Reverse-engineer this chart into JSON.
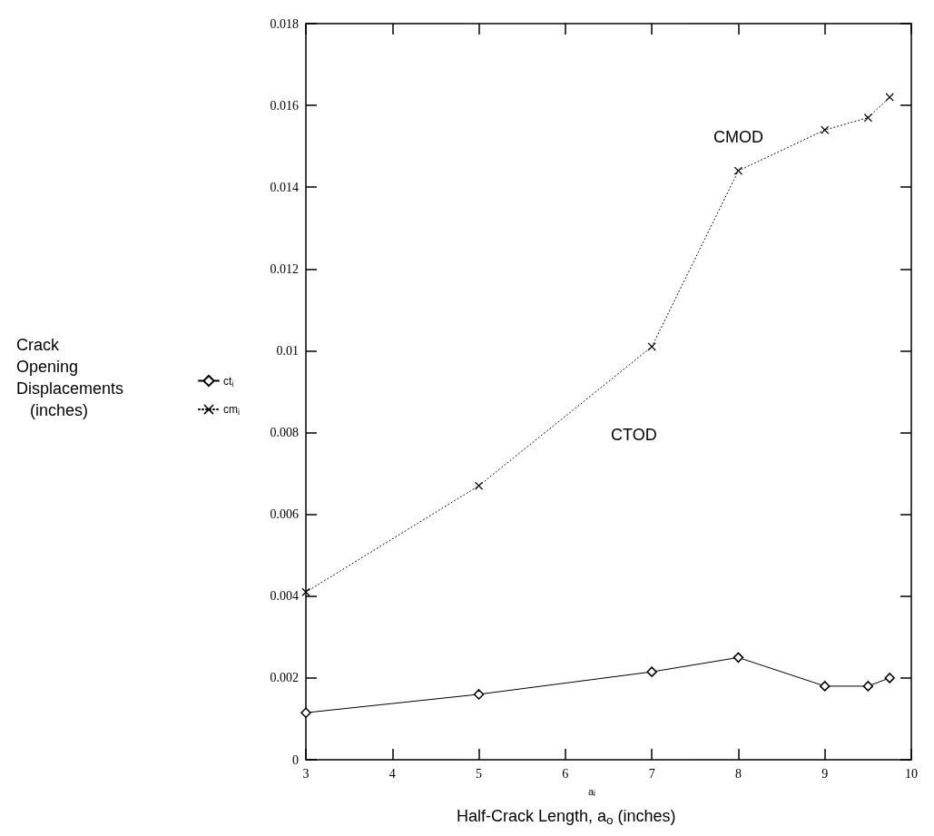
{
  "chart_data": {
    "type": "line",
    "xlabel": "Half-Crack Length, a$_{o}$ (inches)",
    "x": [
      3,
      5,
      7,
      8,
      9,
      9.5,
      9.75
    ],
    "series": [
      {
        "name": "ct$_{i}$",
        "color": "#000000",
        "marker": "diamond",
        "line_style": "solid",
        "values": [
          0.00115,
          0.0016,
          0.00215,
          0.0025,
          0.0018,
          0.0018,
          0.002
        ]
      },
      {
        "name": "cm$_{i}$",
        "color": "#000000",
        "marker": "cross",
        "line_style": "dotted",
        "values": [
          0.0041,
          0.0067,
          0.0101,
          0.0144,
          0.0154,
          0.0157,
          0.0162
        ]
      }
    ],
    "annotations": [
      "Crack Opening Displacements (inches)",
      "a$_{i}$",
      "CMOD",
      "CTOD"
    ],
    "xlim": [
      3,
      10
    ],
    "xticks": [
      3,
      4,
      5,
      6,
      7,
      8,
      9,
      10
    ],
    "ylim": [
      0,
      0.018
    ],
    "yticks": [
      0,
      0.002,
      0.004,
      0.006,
      0.008,
      0.01,
      0.012,
      0.014,
      0.016,
      0.018
    ],
    "grid": false,
    "legend": "left"
  }
}
